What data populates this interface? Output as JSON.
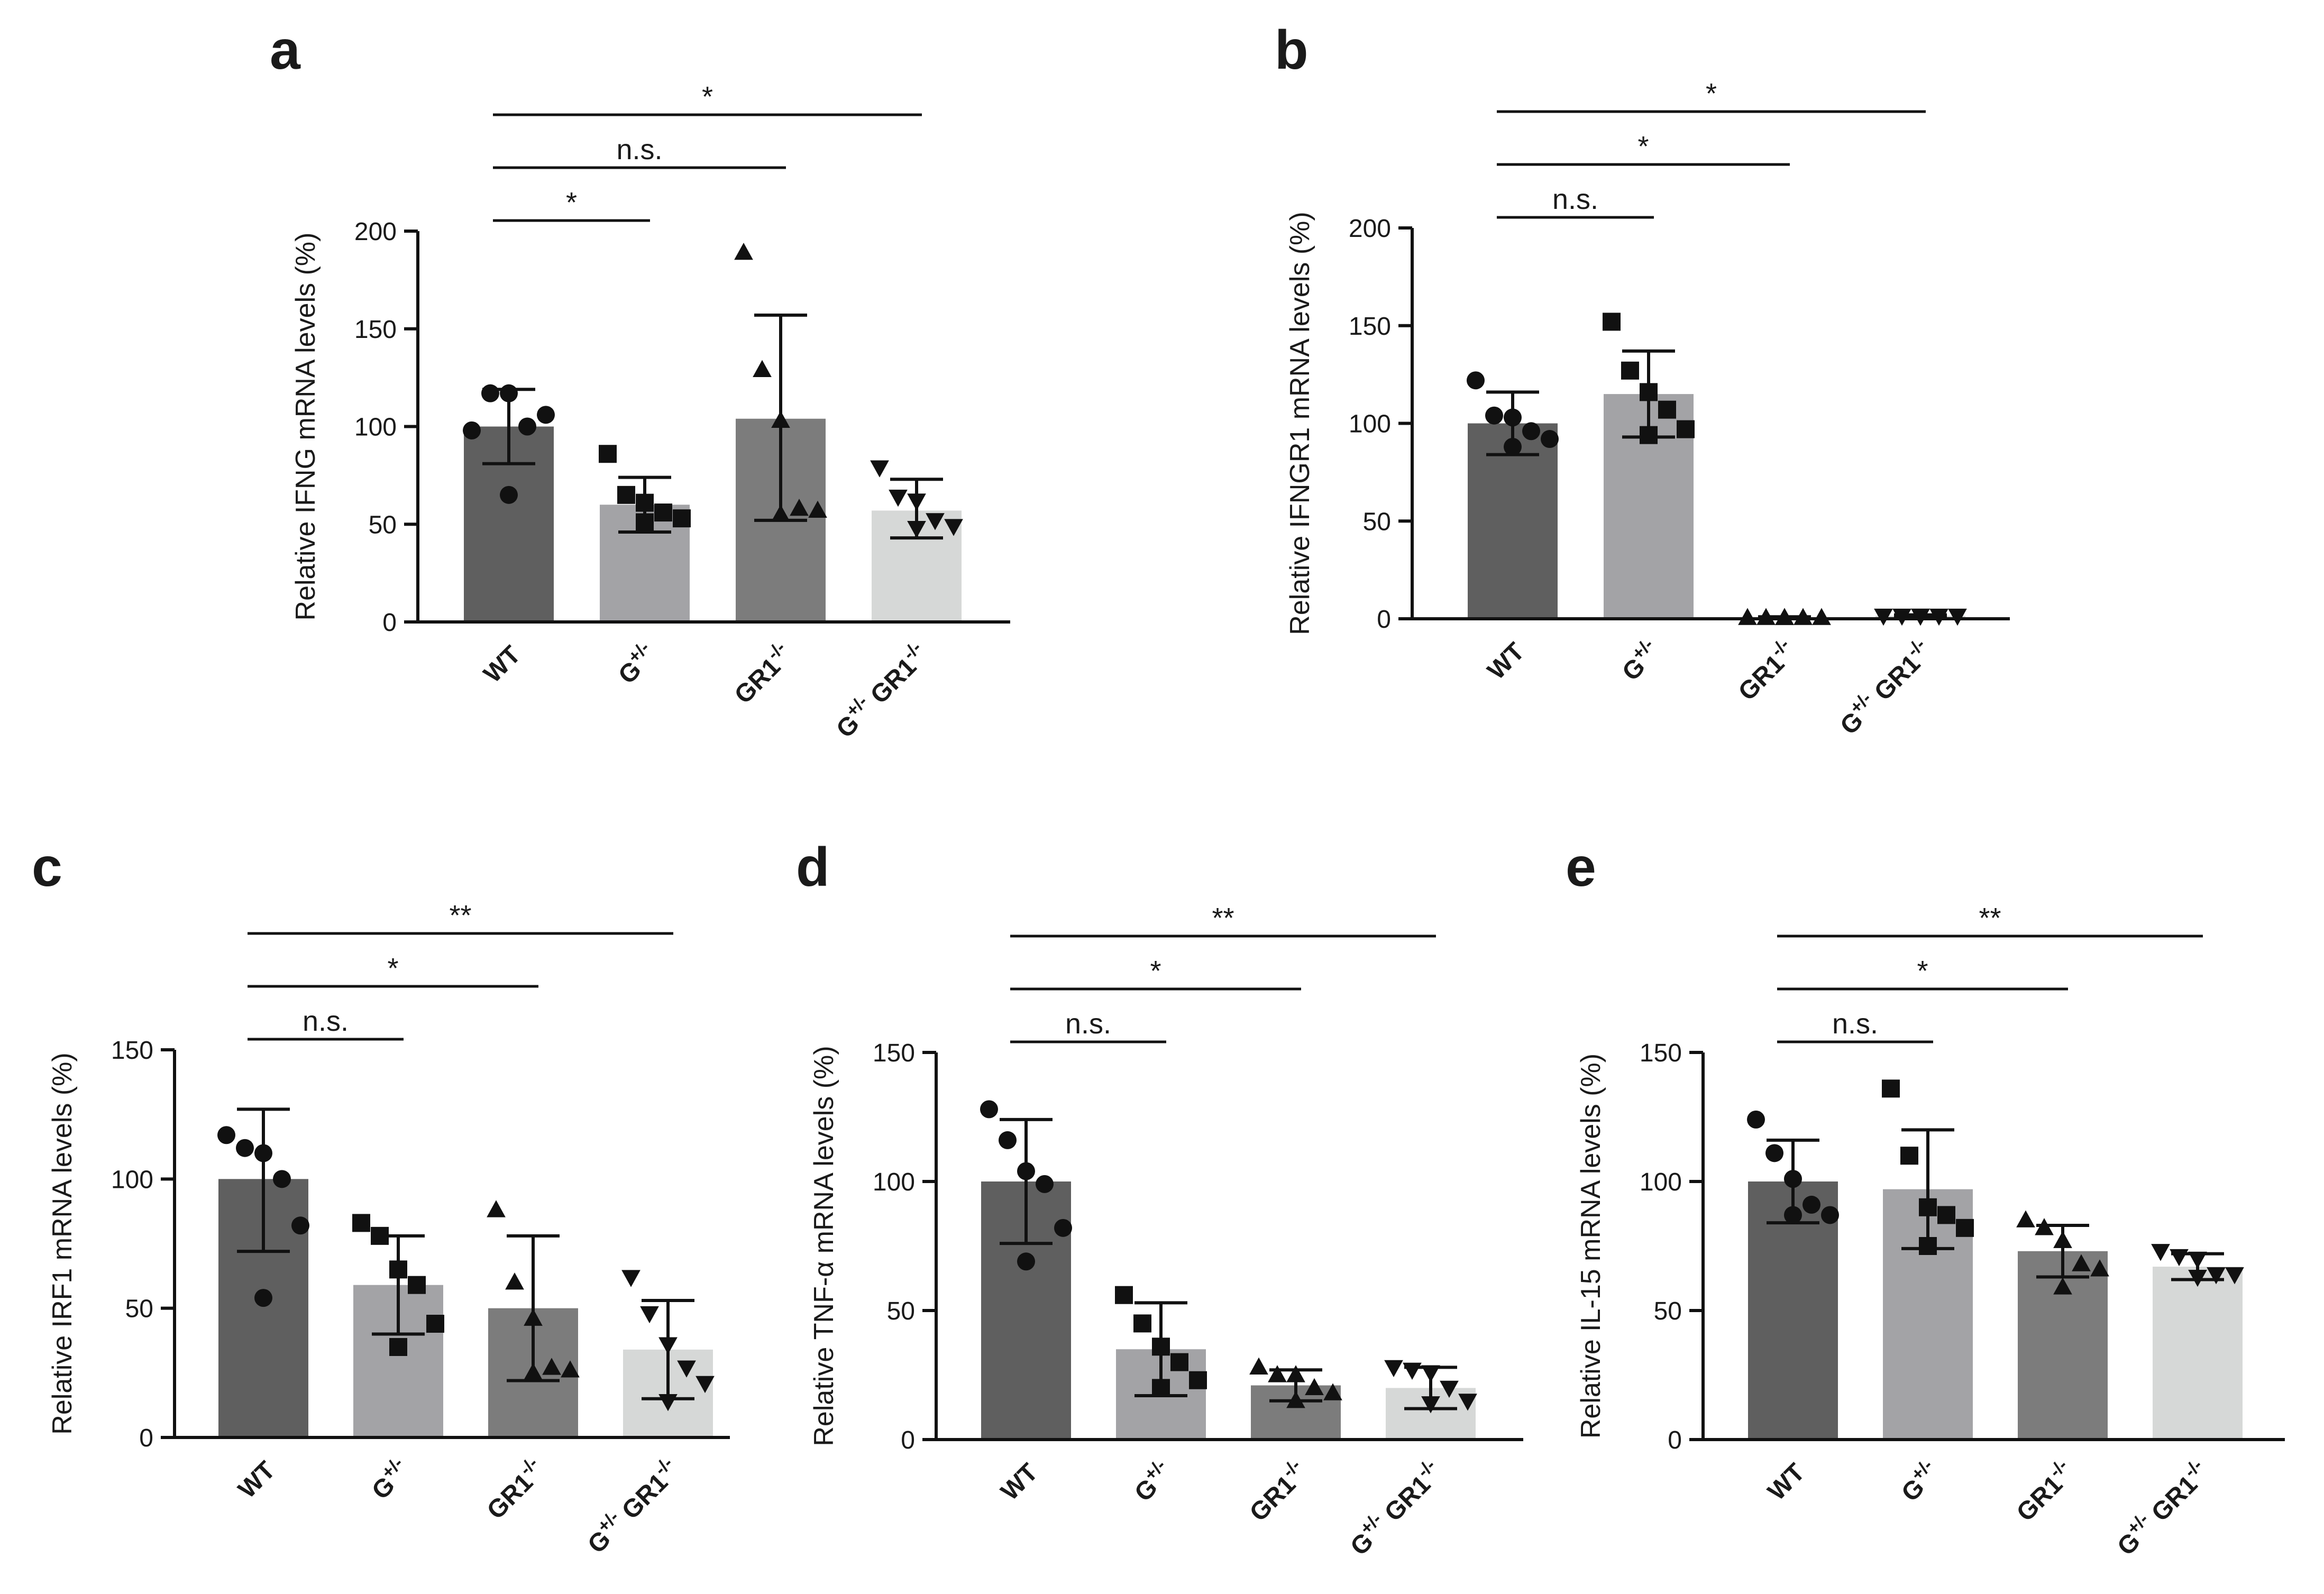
{
  "colors": {
    "wt": "#5f5f5f",
    "g_het": "#a3a3a6",
    "gr1_ko": "#7c7c7c",
    "double": "#d6d8d7",
    "ink": "#111111"
  },
  "chart_data": [
    {
      "panel": "a",
      "type": "bar",
      "ylabel": "Relative IFNG mRNA levels (%)",
      "ylim": [
        0,
        200
      ],
      "yticks": [
        0,
        50,
        100,
        150,
        200
      ],
      "categories": [
        "WT",
        "G+/-",
        "GR1-/-",
        "G+/- GR1-/-"
      ],
      "category_labels": [
        {
          "base": "WT",
          "sup": ""
        },
        {
          "base": "G",
          "sup": "+/-"
        },
        {
          "base": "GR1",
          "sup": "-/-"
        },
        {
          "base": "G",
          "sup": "+/-",
          "base2": " GR1",
          "sup2": "-/-"
        }
      ],
      "means": [
        100,
        60,
        104,
        57
      ],
      "errors_low": [
        81,
        46,
        52,
        43
      ],
      "errors_high": [
        119,
        74,
        157,
        73
      ],
      "points": [
        [
          98,
          117,
          117,
          100,
          106,
          65
        ],
        [
          86,
          65,
          61,
          56,
          53,
          51
        ],
        [
          189,
          129,
          103,
          58,
          57,
          55
        ],
        [
          79,
          64,
          62,
          52,
          49,
          48
        ]
      ],
      "markers": [
        "circle",
        "square",
        "triangle",
        "triangle-down"
      ],
      "comparisons": [
        {
          "from": 0,
          "to": 1,
          "label": "*"
        },
        {
          "from": 0,
          "to": 2,
          "label": "n.s."
        },
        {
          "from": 0,
          "to": 3,
          "label": "*"
        }
      ]
    },
    {
      "panel": "b",
      "type": "bar",
      "ylabel": "Relative IFNGR1 mRNA levels (%)",
      "ylim": [
        0,
        200
      ],
      "yticks": [
        0,
        50,
        100,
        150,
        200
      ],
      "categories": [
        "WT",
        "G+/-",
        "GR1-/-",
        "G+/- GR1-/-"
      ],
      "category_labels": [
        {
          "base": "WT",
          "sup": ""
        },
        {
          "base": "G",
          "sup": "+/-"
        },
        {
          "base": "GR1",
          "sup": "-/-"
        },
        {
          "base": "G",
          "sup": "+/-",
          "base2": " GR1",
          "sup2": "-/-"
        }
      ],
      "means": [
        100,
        115,
        0.5,
        1.5
      ],
      "errors_low": [
        84,
        93,
        0,
        1
      ],
      "errors_high": [
        116,
        137,
        1,
        2
      ],
      "points": [
        [
          122,
          104,
          103,
          96,
          92,
          88
        ],
        [
          152,
          127,
          116,
          107,
          97,
          94
        ],
        [
          0.5,
          0.5,
          0.5,
          0.5,
          0.5,
          0.5
        ],
        [
          1.5,
          1.5,
          1.5,
          1.5,
          1.5,
          1.5
        ]
      ],
      "markers": [
        "circle",
        "square",
        "triangle",
        "triangle-down"
      ],
      "comparisons": [
        {
          "from": 0,
          "to": 1,
          "label": "n.s."
        },
        {
          "from": 0,
          "to": 2,
          "label": "*"
        },
        {
          "from": 0,
          "to": 3,
          "label": "*"
        }
      ]
    },
    {
      "panel": "c",
      "type": "bar",
      "ylabel": "Relative IRF1 mRNA levels (%)",
      "ylim": [
        0,
        150
      ],
      "yticks": [
        0,
        50,
        100,
        150
      ],
      "categories": [
        "WT",
        "G+/-",
        "GR1-/-",
        "G+/- GR1-/-"
      ],
      "category_labels": [
        {
          "base": "WT",
          "sup": ""
        },
        {
          "base": "G",
          "sup": "+/-"
        },
        {
          "base": "GR1",
          "sup": "-/-"
        },
        {
          "base": "G",
          "sup": "+/-",
          "base2": " GR1",
          "sup2": "-/-"
        }
      ],
      "means": [
        100,
        59,
        50,
        34
      ],
      "errors_low": [
        72,
        40,
        22,
        15
      ],
      "errors_high": [
        127,
        78,
        78,
        53
      ],
      "points": [
        [
          117,
          112,
          110,
          100,
          82,
          54
        ],
        [
          83,
          78,
          65,
          59,
          44,
          35
        ],
        [
          88,
          60,
          46,
          27,
          26,
          25
        ],
        [
          62,
          48,
          36,
          27,
          21,
          14
        ]
      ],
      "markers": [
        "circle",
        "square",
        "triangle",
        "triangle-down"
      ],
      "comparisons": [
        {
          "from": 0,
          "to": 1,
          "label": "n.s."
        },
        {
          "from": 0,
          "to": 2,
          "label": "*"
        },
        {
          "from": 0,
          "to": 3,
          "label": "**"
        }
      ]
    },
    {
      "panel": "d",
      "type": "bar",
      "ylabel": "Relative TNF-α mRNA levels (%)",
      "ylim": [
        0,
        150
      ],
      "yticks": [
        0,
        50,
        100,
        150
      ],
      "categories": [
        "WT",
        "G+/-",
        "GR1-/-",
        "G+/- GR1-/-"
      ],
      "category_labels": [
        {
          "base": "WT",
          "sup": ""
        },
        {
          "base": "G",
          "sup": "+/-"
        },
        {
          "base": "GR1",
          "sup": "-/-"
        },
        {
          "base": "G",
          "sup": "+/-",
          "base2": " GR1",
          "sup2": "-/-"
        }
      ],
      "means": [
        100,
        35,
        21,
        20
      ],
      "errors_low": [
        76,
        17,
        15,
        12
      ],
      "errors_high": [
        124,
        53,
        27,
        28
      ],
      "points": [
        [
          128,
          116,
          104,
          99,
          82,
          69
        ],
        [
          56,
          45,
          36,
          30,
          23,
          20
        ],
        [
          28,
          25,
          25,
          20,
          18,
          15
        ],
        [
          28,
          27,
          26,
          20,
          15,
          14
        ]
      ],
      "markers": [
        "circle",
        "square",
        "triangle",
        "triangle-down"
      ],
      "comparisons": [
        {
          "from": 0,
          "to": 1,
          "label": "n.s."
        },
        {
          "from": 0,
          "to": 2,
          "label": "*"
        },
        {
          "from": 0,
          "to": 3,
          "label": "**"
        }
      ]
    },
    {
      "panel": "e",
      "type": "bar",
      "ylabel": "Relative IL-15 mRNA levels (%)",
      "ylim": [
        0,
        150
      ],
      "yticks": [
        0,
        50,
        100,
        150
      ],
      "categories": [
        "WT",
        "G+/-",
        "GR1-/-",
        "G+/- GR1-/-"
      ],
      "category_labels": [
        {
          "base": "WT",
          "sup": ""
        },
        {
          "base": "G",
          "sup": "+/-"
        },
        {
          "base": "GR1",
          "sup": "-/-"
        },
        {
          "base": "G",
          "sup": "+/-",
          "base2": " GR1",
          "sup2": "-/-"
        }
      ],
      "means": [
        100,
        97,
        73,
        67
      ],
      "errors_low": [
        84,
        74,
        63,
        62
      ],
      "errors_high": [
        116,
        120,
        83,
        72
      ],
      "points": [
        [
          124,
          111,
          101,
          91,
          87,
          87
        ],
        [
          136,
          110,
          90,
          87,
          82,
          75
        ],
        [
          85,
          82,
          77,
          68,
          66,
          59
        ],
        [
          73,
          71,
          70,
          64,
          64,
          63
        ]
      ],
      "markers": [
        "circle",
        "square",
        "triangle",
        "triangle-down"
      ],
      "comparisons": [
        {
          "from": 0,
          "to": 1,
          "label": "n.s."
        },
        {
          "from": 0,
          "to": 2,
          "label": "*"
        },
        {
          "from": 0,
          "to": 3,
          "label": "**"
        }
      ]
    }
  ]
}
